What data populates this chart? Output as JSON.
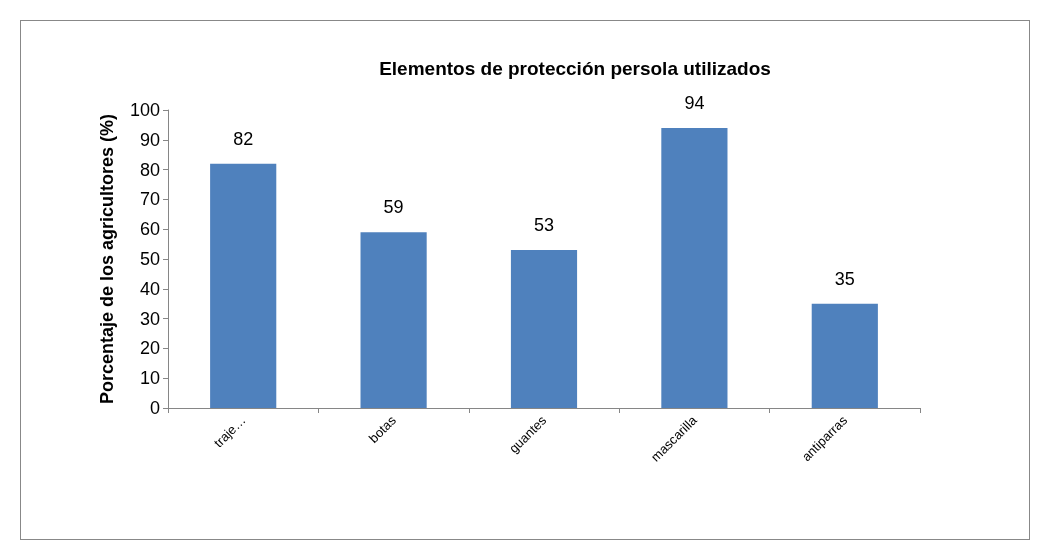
{
  "chart_data": {
    "type": "bar",
    "title": "Elementos de protección persola utilizados",
    "ylabel": "Porcentaje de los agricultores (%)",
    "categories": [
      "traje…",
      "botas",
      "guantes",
      "mascarilla",
      "antiparras"
    ],
    "values": [
      82,
      59,
      53,
      94,
      35
    ],
    "color": "#4f81bd",
    "ylim": [
      0,
      100
    ],
    "yticks": [
      0,
      10,
      20,
      30,
      40,
      50,
      60,
      70,
      80,
      90,
      100
    ],
    "data_labels": true
  }
}
